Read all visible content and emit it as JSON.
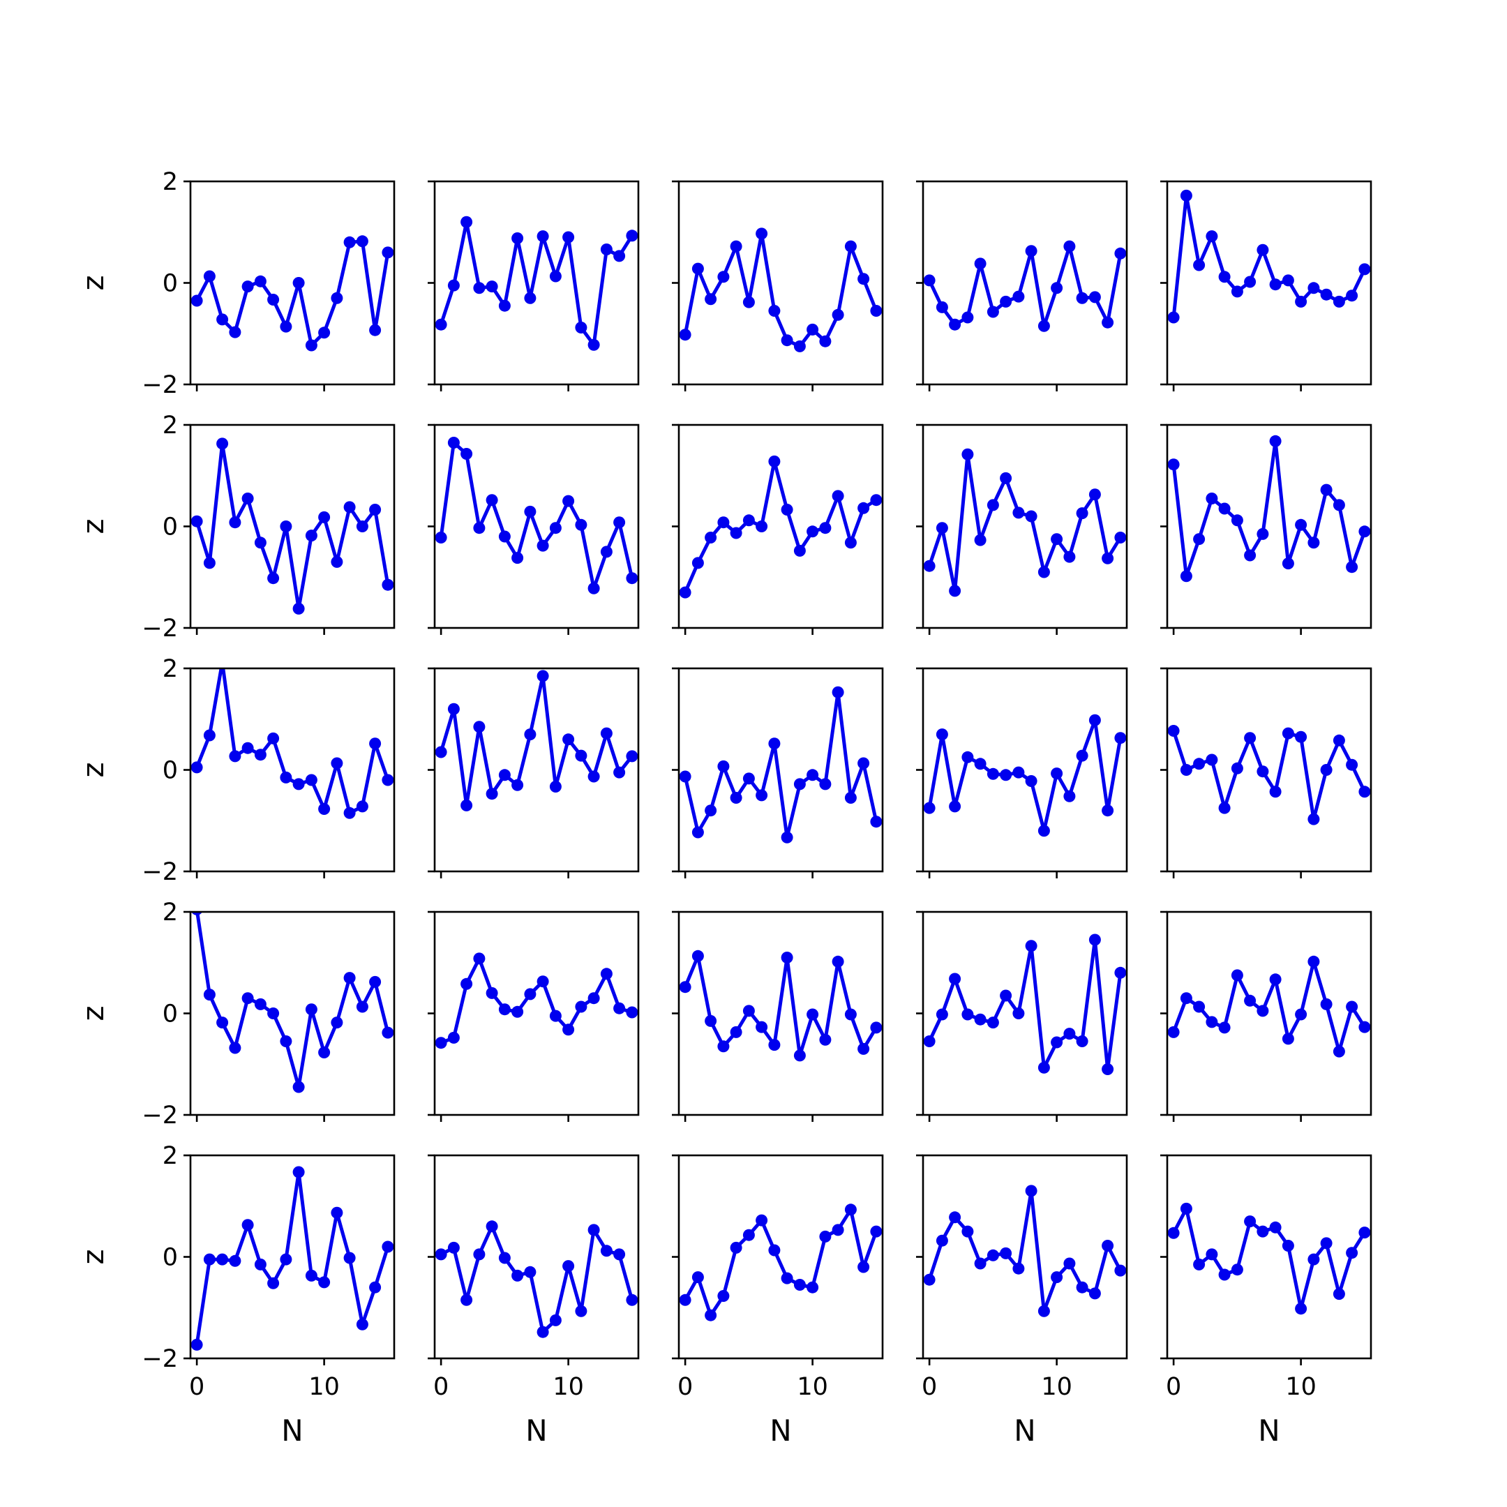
{
  "chart_data": {
    "type": "line",
    "layout": "5x5 grid of subplots, shared axes",
    "xlabel": "N",
    "ylabel": "z",
    "xlim": [
      -0.5,
      15.5
    ],
    "ylim": [
      -2,
      2
    ],
    "x_ticks": [
      0,
      10
    ],
    "y_ticks": [
      -2,
      0,
      2
    ],
    "x_tick_labels": [
      "0",
      "10"
    ],
    "y_tick_labels": [
      "−2",
      "0",
      "2"
    ],
    "x": [
      0,
      1,
      2,
      3,
      4,
      5,
      6,
      7,
      8,
      9,
      10,
      11,
      12,
      13,
      14,
      15
    ],
    "line_color": "#0000ee",
    "marker": "circle",
    "grid": false,
    "panels": [
      {
        "values": [
          -0.35,
          0.13,
          -0.72,
          -0.97,
          -0.07,
          0.03,
          -0.33,
          -0.86,
          0.0,
          -1.23,
          -0.98,
          -0.3,
          0.8,
          0.82,
          -0.93,
          0.6
        ]
      },
      {
        "values": [
          -0.82,
          -0.05,
          1.2,
          -0.1,
          -0.07,
          -0.45,
          0.88,
          -0.3,
          0.92,
          0.13,
          0.9,
          -0.88,
          -1.22,
          0.66,
          0.53,
          0.93
        ]
      },
      {
        "values": [
          -1.02,
          0.28,
          -0.32,
          0.12,
          0.72,
          -0.38,
          0.97,
          -0.55,
          -1.13,
          -1.25,
          -0.92,
          -1.15,
          -0.63,
          0.72,
          0.08,
          -0.55
        ]
      },
      {
        "values": [
          0.05,
          -0.48,
          -0.82,
          -0.68,
          0.38,
          -0.57,
          -0.37,
          -0.27,
          0.63,
          -0.85,
          -0.1,
          0.72,
          -0.3,
          -0.28,
          -0.78,
          0.58
        ]
      },
      {
        "values": [
          -0.68,
          1.72,
          0.35,
          0.92,
          0.12,
          -0.17,
          0.02,
          0.65,
          -0.03,
          0.05,
          -0.37,
          -0.1,
          -0.23,
          -0.37,
          -0.25,
          0.27
        ]
      },
      {
        "values": [
          0.1,
          -0.72,
          1.63,
          0.08,
          0.55,
          -0.32,
          -1.02,
          0.0,
          -1.62,
          -0.18,
          0.18,
          -0.7,
          0.38,
          0.0,
          0.33,
          -1.15
        ]
      },
      {
        "values": [
          -0.22,
          1.65,
          1.43,
          -0.03,
          0.52,
          -0.2,
          -0.62,
          0.29,
          -0.38,
          -0.03,
          0.5,
          0.03,
          -1.22,
          -0.5,
          0.08,
          -1.02
        ]
      },
      {
        "values": [
          -1.3,
          -0.72,
          -0.22,
          0.08,
          -0.13,
          0.12,
          0.0,
          1.28,
          0.33,
          -0.48,
          -0.1,
          -0.03,
          0.6,
          -0.32,
          0.36,
          0.52
        ]
      },
      {
        "values": [
          -0.78,
          -0.03,
          -1.27,
          1.42,
          -0.27,
          0.42,
          0.95,
          0.27,
          0.2,
          -0.9,
          -0.25,
          -0.6,
          0.26,
          0.63,
          -0.63,
          -0.22
        ]
      },
      {
        "values": [
          1.22,
          -0.98,
          -0.25,
          0.55,
          0.35,
          0.12,
          -0.57,
          -0.15,
          1.68,
          -0.73,
          0.03,
          -0.32,
          0.72,
          0.42,
          -0.8,
          -0.1
        ]
      },
      {
        "values": [
          0.05,
          0.68,
          2.12,
          0.27,
          0.43,
          0.3,
          0.62,
          -0.15,
          -0.28,
          -0.2,
          -0.77,
          0.13,
          -0.85,
          -0.72,
          0.52,
          -0.2
        ]
      },
      {
        "values": [
          0.35,
          1.2,
          -0.7,
          0.85,
          -0.47,
          -0.1,
          -0.3,
          0.7,
          1.85,
          -0.33,
          0.6,
          0.28,
          -0.13,
          0.72,
          -0.05,
          0.27
        ]
      },
      {
        "values": [
          -0.13,
          -1.23,
          -0.8,
          0.07,
          -0.55,
          -0.17,
          -0.5,
          0.52,
          -1.33,
          -0.28,
          -0.1,
          -0.28,
          1.53,
          -0.55,
          0.13,
          -1.02
        ]
      },
      {
        "values": [
          -0.75,
          0.7,
          -0.72,
          0.25,
          0.12,
          -0.08,
          -0.1,
          -0.05,
          -0.22,
          -1.2,
          -0.07,
          -0.52,
          0.28,
          0.98,
          -0.8,
          0.63
        ]
      },
      {
        "values": [
          0.77,
          0.0,
          0.12,
          0.2,
          -0.75,
          0.03,
          0.63,
          -0.03,
          -0.43,
          0.72,
          0.65,
          -0.97,
          0.0,
          0.58,
          0.1,
          -0.43
        ]
      },
      {
        "values": [
          2.05,
          0.37,
          -0.18,
          -0.68,
          0.3,
          0.18,
          0.0,
          -0.55,
          -1.45,
          0.08,
          -0.77,
          -0.18,
          0.7,
          0.13,
          0.62,
          -0.38
        ]
      },
      {
        "values": [
          -0.58,
          -0.48,
          0.58,
          1.08,
          0.4,
          0.08,
          0.03,
          0.38,
          0.63,
          -0.05,
          -0.32,
          0.13,
          0.3,
          0.78,
          0.1,
          0.02
        ]
      },
      {
        "values": [
          0.52,
          1.13,
          -0.15,
          -0.65,
          -0.37,
          0.05,
          -0.27,
          -0.62,
          1.1,
          -0.83,
          -0.02,
          -0.52,
          1.02,
          -0.02,
          -0.7,
          -0.28
        ]
      },
      {
        "values": [
          -0.55,
          -0.02,
          0.68,
          -0.02,
          -0.12,
          -0.18,
          0.35,
          0.0,
          1.33,
          -1.07,
          -0.57,
          -0.4,
          -0.55,
          1.45,
          -1.1,
          0.8
        ]
      },
      {
        "values": [
          -0.37,
          0.3,
          0.13,
          -0.17,
          -0.28,
          0.75,
          0.25,
          0.05,
          0.67,
          -0.5,
          -0.02,
          1.02,
          0.18,
          -0.75,
          0.13,
          -0.27
        ]
      },
      {
        "values": [
          -1.73,
          -0.05,
          -0.05,
          -0.08,
          0.63,
          -0.15,
          -0.52,
          -0.05,
          1.67,
          -0.37,
          -0.5,
          0.87,
          -0.02,
          -1.33,
          -0.6,
          0.2
        ]
      },
      {
        "values": [
          0.05,
          0.18,
          -0.85,
          0.05,
          0.6,
          -0.02,
          -0.37,
          -0.3,
          -1.48,
          -1.25,
          -0.18,
          -1.07,
          0.53,
          0.12,
          0.05,
          -0.85
        ]
      },
      {
        "values": [
          -0.85,
          -0.4,
          -1.15,
          -0.77,
          0.18,
          0.43,
          0.72,
          0.13,
          -0.42,
          -0.55,
          -0.6,
          0.4,
          0.53,
          0.93,
          -0.2,
          0.5
        ]
      },
      {
        "values": [
          -0.45,
          0.32,
          0.78,
          0.5,
          -0.13,
          0.03,
          0.07,
          -0.23,
          1.3,
          -1.07,
          -0.4,
          -0.13,
          -0.6,
          -0.72,
          0.22,
          -0.27
        ]
      },
      {
        "values": [
          0.47,
          0.95,
          -0.15,
          0.05,
          -0.35,
          -0.25,
          0.7,
          0.5,
          0.58,
          0.22,
          -1.02,
          -0.05,
          0.27,
          -0.73,
          0.08,
          0.48
        ]
      }
    ]
  }
}
